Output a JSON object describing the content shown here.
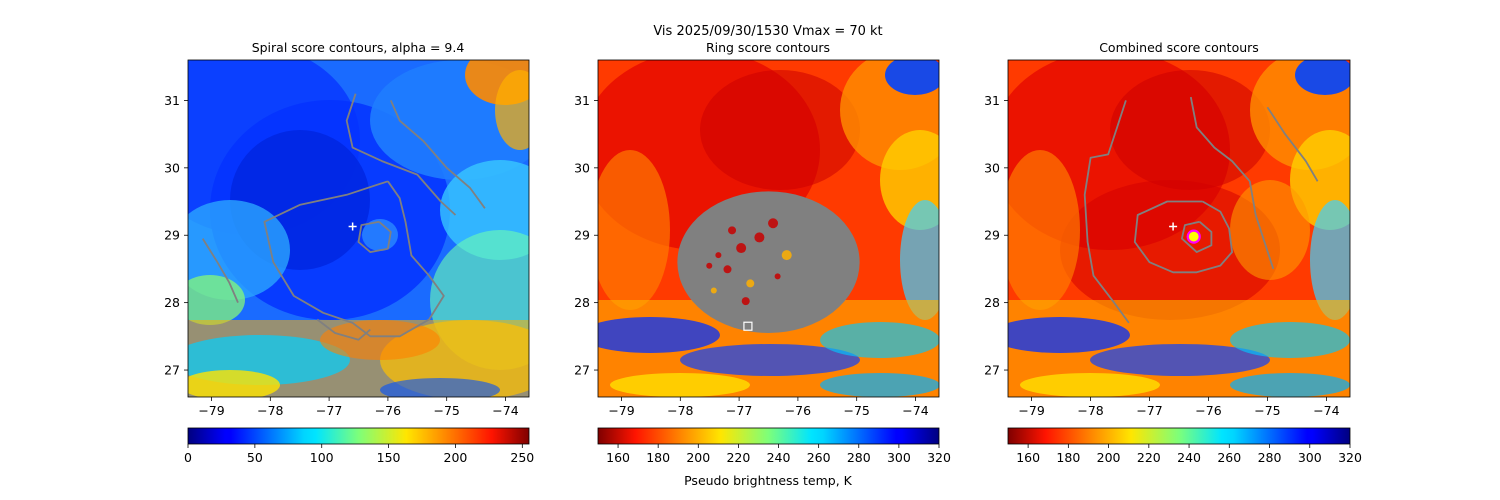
{
  "suptitle": "Vis  2025/09/30/1530    Vmax = 70 kt",
  "chart_data": [
    {
      "type": "heatmap",
      "title": "Spiral score contours, alpha =  9.4",
      "xlim": [
        -79.4,
        -73.6
      ],
      "ylim": [
        26.6,
        31.6
      ],
      "xticks": [
        -79,
        -78,
        -77,
        -76,
        -75,
        -74
      ],
      "yticks": [
        27,
        28,
        29,
        30,
        31
      ],
      "xticklabels": [
        "−79",
        "−78",
        "−77",
        "−76",
        "−75",
        "−74"
      ],
      "yticklabels": [
        "27",
        "28",
        "29",
        "30",
        "31"
      ],
      "colormap": "jet",
      "colorbar": {
        "range": [
          0,
          255
        ],
        "ticks": [
          0,
          50,
          100,
          150,
          200,
          250
        ],
        "ticklabels": [
          "0",
          "50",
          "100",
          "150",
          "200",
          "250"
        ],
        "label": ""
      },
      "marker": {
        "type": "plus",
        "lon": -76.6,
        "lat": 29.13,
        "color": "#ffffff"
      },
      "contours": [
        {
          "color": "#808080",
          "points": [
            [
              -79.15,
              28.95
            ],
            [
              -78.9,
              28.6
            ],
            [
              -78.7,
              28.3
            ],
            [
              -78.55,
              28.0
            ]
          ]
        },
        {
          "color": "#808080",
          "points": [
            [
              -76.55,
              31.1
            ],
            [
              -76.7,
              30.7
            ],
            [
              -76.6,
              30.3
            ],
            [
              -76.1,
              30.1
            ],
            [
              -75.5,
              29.9
            ],
            [
              -75.1,
              29.5
            ],
            [
              -74.85,
              29.3
            ]
          ]
        },
        {
          "color": "#808080",
          "points": [
            [
              -75.95,
              31.0
            ],
            [
              -75.8,
              30.7
            ],
            [
              -75.4,
              30.4
            ],
            [
              -75.0,
              30.0
            ],
            [
              -74.6,
              29.7
            ],
            [
              -74.35,
              29.4
            ]
          ]
        },
        {
          "color": "#808080",
          "points": [
            [
              -76.0,
              29.8
            ],
            [
              -76.7,
              29.6
            ],
            [
              -77.5,
              29.45
            ],
            [
              -78.1,
              29.2
            ],
            [
              -77.95,
              28.6
            ],
            [
              -77.6,
              28.1
            ],
            [
              -77.1,
              27.85
            ],
            [
              -76.6,
              27.7
            ],
            [
              -76.3,
              27.5
            ],
            [
              -75.8,
              27.5
            ],
            [
              -75.3,
              27.75
            ],
            [
              -75.05,
              28.1
            ],
            [
              -75.3,
              28.4
            ],
            [
              -75.6,
              28.7
            ],
            [
              -75.7,
              29.2
            ],
            [
              -75.8,
              29.55
            ],
            [
              -76.0,
              29.8
            ]
          ]
        },
        {
          "color": "#808080",
          "points": [
            [
              -76.15,
              29.2
            ],
            [
              -76.45,
              29.15
            ],
            [
              -76.5,
              28.9
            ],
            [
              -76.3,
              28.75
            ],
            [
              -76.0,
              28.8
            ],
            [
              -75.95,
              29.05
            ],
            [
              -76.15,
              29.2
            ]
          ]
        },
        {
          "color": "#808080",
          "points": [
            [
              -77.2,
              27.75
            ],
            [
              -76.9,
              27.55
            ],
            [
              -76.5,
              27.45
            ],
            [
              -76.3,
              27.6
            ]
          ]
        }
      ]
    },
    {
      "type": "heatmap",
      "title": "Ring score contours",
      "xlim": [
        -79.4,
        -73.6
      ],
      "ylim": [
        26.6,
        31.6
      ],
      "xticks": [
        -79,
        -78,
        -77,
        -76,
        -75,
        -74
      ],
      "yticks": [
        27,
        28,
        29,
        30,
        31
      ],
      "xticklabels": [
        "−79",
        "−78",
        "−77",
        "−76",
        "−75",
        "−74"
      ],
      "yticklabels": [
        "27",
        "28",
        "29",
        "30",
        "31"
      ],
      "colormap": "jet_r",
      "colorbar": {
        "range": [
          150,
          320
        ],
        "ticks": [
          160,
          180,
          200,
          220,
          240,
          260,
          280,
          300,
          320
        ],
        "ticklabels": [
          "160",
          "180",
          "200",
          "220",
          "240",
          "260",
          "280",
          "300",
          "320"
        ],
        "label": "Pseudo brightness temp, K"
      },
      "masked_region": {
        "color": "#808080",
        "center": [
          -76.5,
          28.6
        ],
        "radius_lon": 1.55,
        "radius_lat": 1.05
      },
      "marker": {
        "type": "square",
        "lon": -76.85,
        "lat": 27.65,
        "color": "#ffffff"
      },
      "contours": []
    },
    {
      "type": "heatmap",
      "title": "Combined score contours",
      "xlim": [
        -79.4,
        -73.6
      ],
      "ylim": [
        26.6,
        31.6
      ],
      "xticks": [
        -79,
        -78,
        -77,
        -76,
        -75,
        -74
      ],
      "yticks": [
        27,
        28,
        29,
        30,
        31
      ],
      "xticklabels": [
        "−79",
        "−78",
        "−77",
        "−76",
        "−75",
        "−74"
      ],
      "yticklabels": [
        "27",
        "28",
        "29",
        "30",
        "31"
      ],
      "colormap": "jet_r",
      "colorbar": {
        "range": [
          150,
          320
        ],
        "ticks": [
          160,
          180,
          200,
          220,
          240,
          260,
          280,
          300,
          320
        ],
        "ticklabels": [
          "160",
          "180",
          "200",
          "220",
          "240",
          "260",
          "280",
          "300",
          "320"
        ],
        "label": ""
      },
      "marker": {
        "type": "plus",
        "lon": -76.6,
        "lat": 29.13,
        "color": "#ffffff"
      },
      "center_marker": {
        "lon": -76.25,
        "lat": 28.98,
        "color": "#ff00ff"
      },
      "contours": [
        {
          "color": "#808080",
          "points": [
            [
              -77.4,
              31.0
            ],
            [
              -77.55,
              30.6
            ],
            [
              -77.7,
              30.2
            ],
            [
              -78.0,
              30.15
            ],
            [
              -78.1,
              29.6
            ],
            [
              -78.05,
              28.9
            ],
            [
              -77.95,
              28.4
            ],
            [
              -77.6,
              28.0
            ],
            [
              -77.35,
              27.7
            ]
          ]
        },
        {
          "color": "#808080",
          "points": [
            [
              -76.3,
              31.05
            ],
            [
              -76.2,
              30.6
            ],
            [
              -75.9,
              30.3
            ],
            [
              -75.6,
              30.1
            ],
            [
              -75.3,
              29.8
            ],
            [
              -75.2,
              29.3
            ],
            [
              -75.05,
              28.9
            ],
            [
              -74.9,
              28.5
            ]
          ]
        },
        {
          "color": "#808080",
          "points": [
            [
              -75.0,
              30.9
            ],
            [
              -74.7,
              30.5
            ],
            [
              -74.35,
              30.1
            ],
            [
              -74.15,
              29.8
            ]
          ]
        },
        {
          "color": "#808080",
          "points": [
            [
              -76.1,
              29.5
            ],
            [
              -76.7,
              29.5
            ],
            [
              -77.2,
              29.3
            ],
            [
              -77.25,
              28.9
            ],
            [
              -77.0,
              28.6
            ],
            [
              -76.6,
              28.45
            ],
            [
              -76.2,
              28.45
            ],
            [
              -75.8,
              28.55
            ],
            [
              -75.6,
              28.75
            ],
            [
              -75.65,
              29.1
            ],
            [
              -75.8,
              29.35
            ],
            [
              -76.1,
              29.5
            ]
          ]
        },
        {
          "color": "#808080",
          "points": [
            [
              -76.15,
              29.2
            ],
            [
              -76.4,
              29.15
            ],
            [
              -76.45,
              28.95
            ],
            [
              -76.2,
              28.75
            ],
            [
              -75.95,
              28.85
            ],
            [
              -75.95,
              29.05
            ],
            [
              -76.15,
              29.2
            ]
          ]
        }
      ]
    }
  ]
}
